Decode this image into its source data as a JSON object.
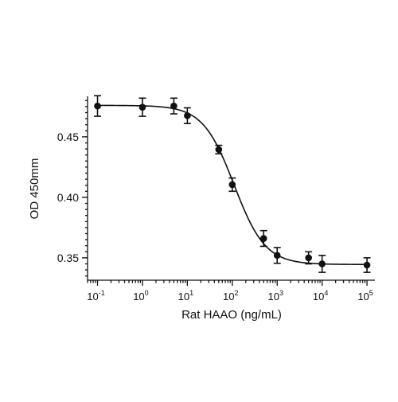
{
  "chart_data": {
    "type": "scatter",
    "title": "",
    "xlabel": "Rat HAAO (ng/mL)",
    "ylabel": "OD 450mm",
    "x_scale": "log",
    "xlim": [
      0.06,
      150000
    ],
    "ylim": [
      0.3315,
      0.4835
    ],
    "grid": false,
    "legend": "none",
    "x_ticks": [
      {
        "value": 0.1,
        "base": "10",
        "exp": "-1"
      },
      {
        "value": 1,
        "base": "10",
        "exp": "0"
      },
      {
        "value": 10,
        "base": "10",
        "exp": "1"
      },
      {
        "value": 100,
        "base": "10",
        "exp": "2"
      },
      {
        "value": 1000,
        "base": "10",
        "exp": "3"
      },
      {
        "value": 10000,
        "base": "10",
        "exp": "4"
      },
      {
        "value": 100000,
        "base": "10",
        "exp": "5"
      }
    ],
    "y_ticks": [
      {
        "value": 0.35,
        "label": "0.35"
      },
      {
        "value": 0.4,
        "label": "0.40"
      },
      {
        "value": 0.45,
        "label": "0.45"
      }
    ],
    "y_minor_step": 0.005,
    "series": [
      {
        "color": "#111111",
        "points": [
          {
            "x": 0.1,
            "y": 0.4755,
            "err": 0.0085
          },
          {
            "x": 1,
            "y": 0.4745,
            "err": 0.0075
          },
          {
            "x": 5,
            "y": 0.4755,
            "err": 0.0065
          },
          {
            "x": 10,
            "y": 0.4675,
            "err": 0.0065
          },
          {
            "x": 50,
            "y": 0.4395,
            "err": 0.0035
          },
          {
            "x": 100,
            "y": 0.4105,
            "err": 0.0055
          },
          {
            "x": 500,
            "y": 0.366,
            "err": 0.0065
          },
          {
            "x": 1000,
            "y": 0.352,
            "err": 0.0065
          },
          {
            "x": 5000,
            "y": 0.35,
            "err": 0.005
          },
          {
            "x": 10000,
            "y": 0.345,
            "err": 0.007
          },
          {
            "x": 100000,
            "y": 0.344,
            "err": 0.006
          }
        ]
      }
    ],
    "fit": {
      "type": "4PL",
      "top": 0.476,
      "bottom": 0.3445,
      "ec50": 110,
      "hill": 1.25
    }
  }
}
